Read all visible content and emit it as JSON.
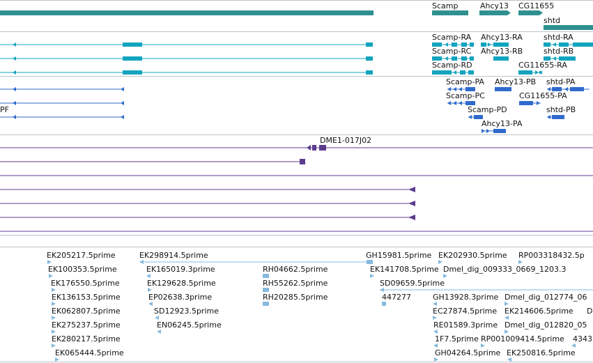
{
  "colors": {
    "gene": "#2e918f",
    "mrna_teal": "#13a4bf",
    "mrna_blue": "#2f6bcc",
    "aligned": "#5c3b8e",
    "est": "#86b9dd",
    "separator": "#b8c4cc"
  },
  "gene_track": {
    "labels": [
      "Scamp",
      "Ahcy13",
      "CG11655",
      "shtd"
    ]
  },
  "transcripts_track": {
    "labels": [
      "Scamp-RA",
      "Ahcy13-RA",
      "shtd-RA",
      "Scamp-RC",
      "Ahcy13-RB",
      "shtd-RB",
      "Scamp-RD",
      "CG11655-RA"
    ]
  },
  "proteins_track": {
    "labels": [
      "Scamp-PA",
      "Ahcy13-PB",
      "shtd-PA",
      "Scamp-PC",
      "CG11655-PA",
      "Scamp-PD",
      "shtd-PB",
      "Ahcy13-PA",
      "PF"
    ]
  },
  "alignment_track": {
    "labels": [
      "DME1-017J02"
    ]
  },
  "est_track": {
    "labels": [
      "EK205217.5prime",
      "EK298914.5prime",
      "GH15981.5prime",
      "EK202930.5prime",
      "RP003318432.5p",
      "EK100353.5prime",
      "EK165019.3prime",
      "RH04662.5prime",
      "EK141708.5prime",
      "Dmel_dig_009333_0669_1203.3",
      "EK176550.5prime",
      "EK129628.5prime",
      "RH55262.5prime",
      "SD09659.5prime",
      "EK136153.5prime",
      "EP02638.3prime",
      "RH20285.5prime",
      "447277",
      "GH13928.3prime",
      "Dmel_dig_012774_06",
      "EK062807.5prime",
      "SD12923.5prime",
      "EC27874.5prime",
      "EK214606.5prime",
      "D",
      "EK275237.5prime",
      "EN06245.5prime",
      "RE01589.3prime",
      "Dmel_dig_012820_05",
      "EK280217.5prime",
      "1F7.5prime",
      "RP001009414.5prime",
      "4343",
      "EK065444.5prime",
      "GH04264.5prime",
      "EK250816.5prime"
    ]
  }
}
